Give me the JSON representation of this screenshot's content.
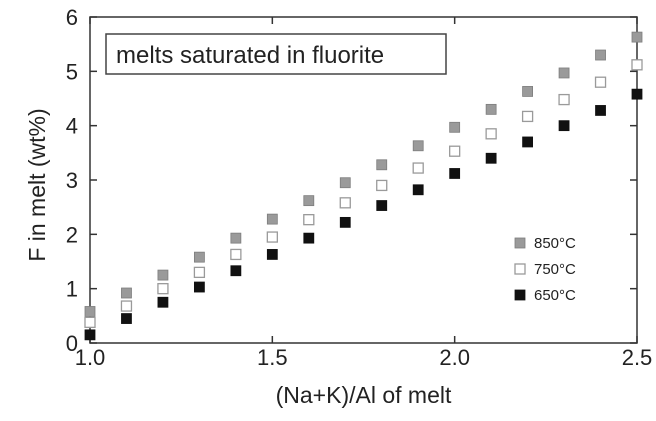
{
  "chart_data": {
    "type": "scatter",
    "title": "",
    "annotation": "melts saturated in fluorite",
    "xlabel": "(Na+K)/Al of melt",
    "ylabel": "F in melt (wt%)",
    "xlim": [
      1.0,
      2.5
    ],
    "ylim": [
      0,
      6
    ],
    "xticks": [
      1.0,
      1.5,
      2.0,
      2.5
    ],
    "xtick_labels": [
      "1.0",
      "1.5",
      "2.0",
      "2.5"
    ],
    "yticks": [
      0,
      1,
      2,
      3,
      4,
      5,
      6
    ],
    "ytick_labels": [
      "0",
      "1",
      "2",
      "3",
      "4",
      "5",
      "6"
    ],
    "grid": false,
    "legend_position": "bottom-right",
    "series": [
      {
        "name": "850°C",
        "marker": "filled-square",
        "color": "#9a9a9a",
        "x": [
          1.0,
          1.1,
          1.2,
          1.3,
          1.4,
          1.5,
          1.6,
          1.7,
          1.8,
          1.9,
          2.0,
          2.1,
          2.2,
          2.3,
          2.4,
          2.5
        ],
        "y": [
          0.58,
          0.92,
          1.25,
          1.58,
          1.93,
          2.28,
          2.62,
          2.95,
          3.28,
          3.63,
          3.97,
          4.3,
          4.63,
          4.97,
          5.3,
          5.63
        ]
      },
      {
        "name": "750°C",
        "marker": "open-square",
        "color": "#bdbdbd",
        "x": [
          1.0,
          1.1,
          1.2,
          1.3,
          1.4,
          1.5,
          1.6,
          1.7,
          1.8,
          1.9,
          2.0,
          2.1,
          2.2,
          2.3,
          2.4,
          2.5
        ],
        "y": [
          0.38,
          0.68,
          1.0,
          1.3,
          1.63,
          1.95,
          2.27,
          2.58,
          2.9,
          3.22,
          3.53,
          3.85,
          4.17,
          4.48,
          4.8,
          5.12
        ]
      },
      {
        "name": "650°C",
        "marker": "filled-square",
        "color": "#111111",
        "x": [
          1.0,
          1.1,
          1.2,
          1.3,
          1.4,
          1.5,
          1.6,
          1.7,
          1.8,
          1.9,
          2.0,
          2.1,
          2.2,
          2.3,
          2.4,
          2.5
        ],
        "y": [
          0.15,
          0.45,
          0.75,
          1.03,
          1.33,
          1.63,
          1.93,
          2.22,
          2.53,
          2.82,
          3.12,
          3.4,
          3.7,
          4.0,
          4.28,
          4.58
        ]
      }
    ]
  }
}
